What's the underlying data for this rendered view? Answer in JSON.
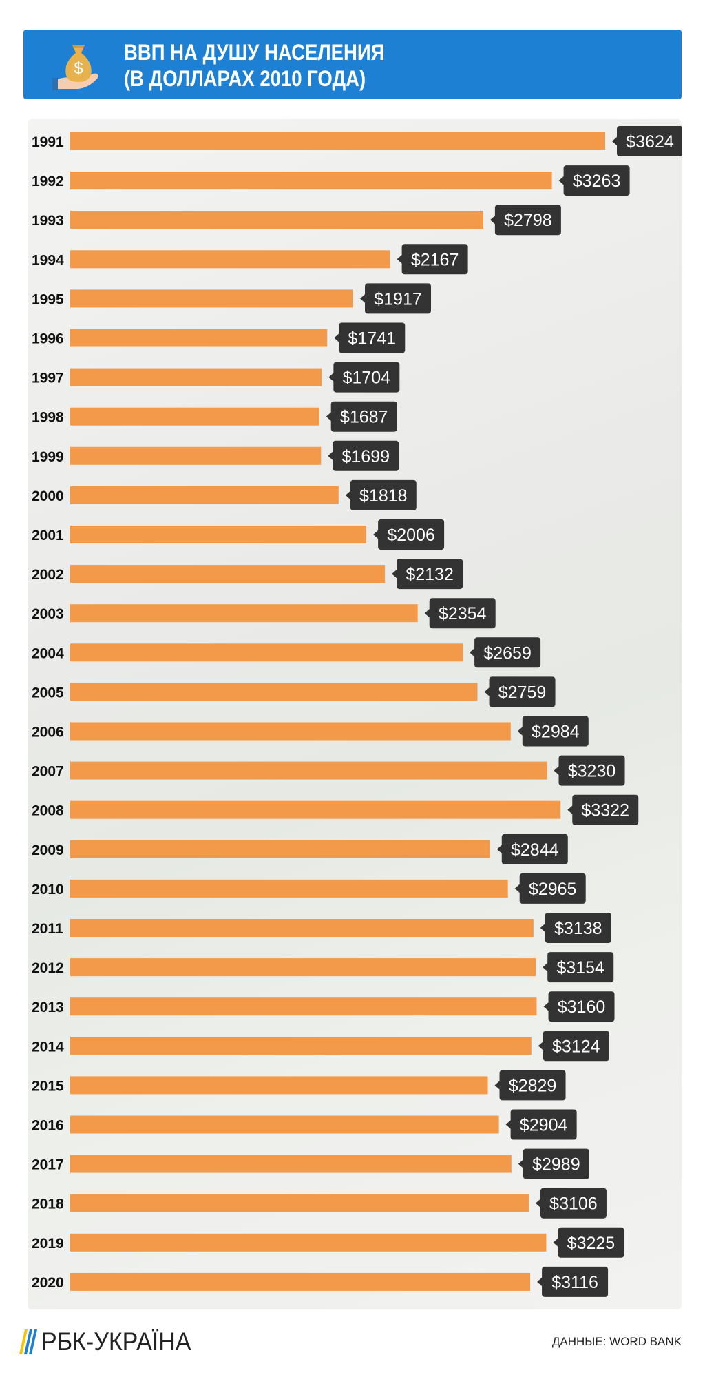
{
  "header": {
    "title_line1": "ВВП НА ДУШУ НАСЕЛЕНИЯ",
    "title_line2": "(В ДОЛЛАРАХ 2010 ГОДА)",
    "icon": "money-bag-in-hand-icon",
    "color": "#1e80d3"
  },
  "chart_data": {
    "type": "bar",
    "orientation": "horizontal",
    "title": "ВВП НА ДУШУ НАСЕЛЕНИЯ (В ДОЛЛАРАХ 2010 ГОДА)",
    "categories": [
      "1991",
      "1992",
      "1993",
      "1994",
      "1995",
      "1996",
      "1997",
      "1998",
      "1999",
      "2000",
      "2001",
      "2002",
      "2003",
      "2004",
      "2005",
      "2006",
      "2007",
      "2008",
      "2009",
      "2010",
      "2011",
      "2012",
      "2013",
      "2014",
      "2015",
      "2016",
      "2017",
      "2018",
      "2019",
      "2020"
    ],
    "values": [
      3624,
      3263,
      2798,
      2167,
      1917,
      1741,
      1704,
      1687,
      1699,
      1818,
      2006,
      2132,
      2354,
      2659,
      2759,
      2984,
      3230,
      3322,
      2844,
      2965,
      3138,
      3154,
      3160,
      3124,
      2829,
      2904,
      2989,
      3106,
      3225,
      3116
    ],
    "value_labels": [
      "$3624",
      "$3263",
      "$2798",
      "$2167",
      "$1917",
      "$1741",
      "$1704",
      "$1687",
      "$1699",
      "$1818",
      "$2006",
      "$2132",
      "$2354",
      "$2659",
      "$2759",
      "$2984",
      "$3230",
      "$3322",
      "$2844",
      "$2965",
      "$3138",
      "$3154",
      "$3160",
      "$3124",
      "$2829",
      "$2904",
      "$2989",
      "$3106",
      "$3225",
      "$3116"
    ],
    "xlim": [
      0,
      3624
    ],
    "grid": false,
    "bar_color": "#f29a4a",
    "label_bg_color": "#333333"
  },
  "footer": {
    "logo_text": "РБК-УКРАЇНА",
    "source": "ДАННЫЕ: WORD BANK"
  }
}
